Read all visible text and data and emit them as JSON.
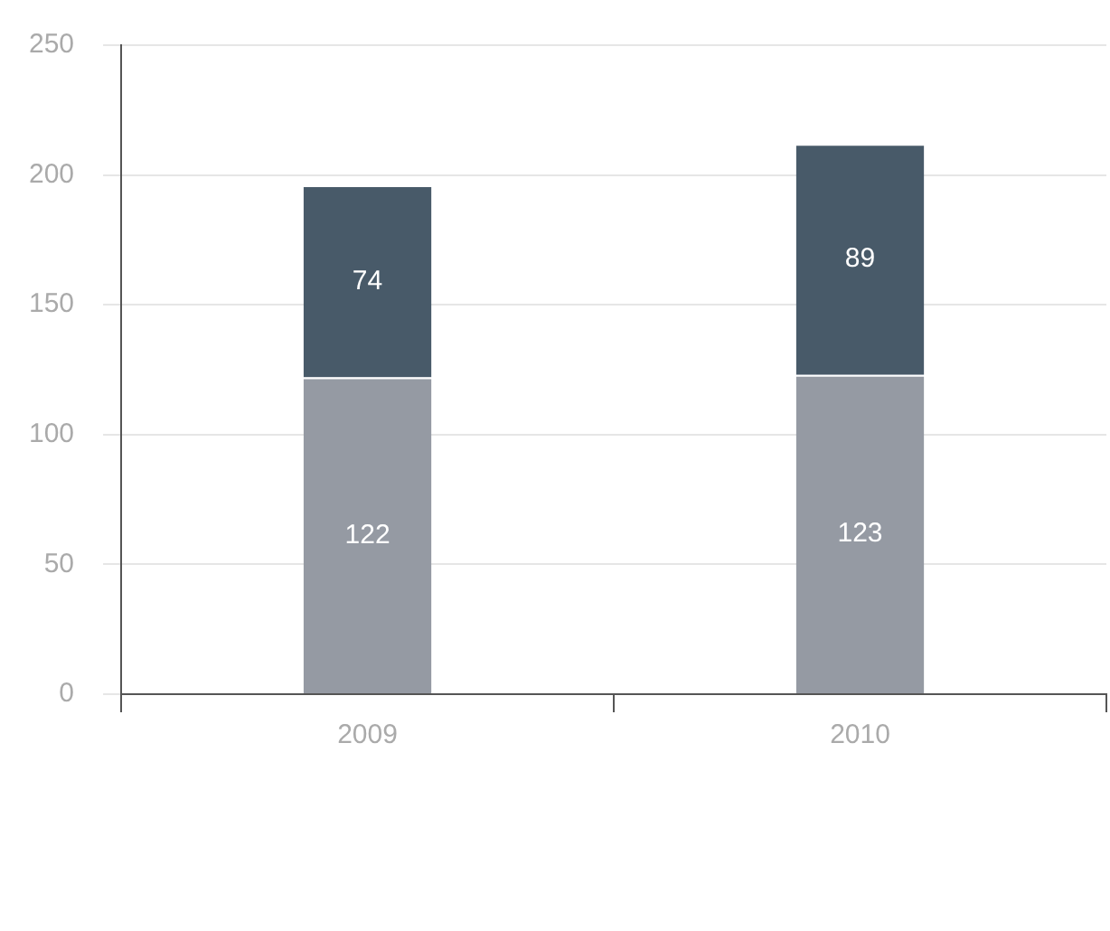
{
  "chart_data": {
    "type": "bar",
    "stacked": true,
    "categories": [
      "2009",
      "2010"
    ],
    "series": [
      {
        "color": "#959aa3",
        "values": [
          122,
          123
        ]
      },
      {
        "color": "#485a69",
        "values": [
          74,
          89
        ]
      }
    ],
    "ylim": [
      0,
      250
    ],
    "yticks": [
      0,
      50,
      100,
      150,
      200,
      250
    ],
    "grid": "y",
    "data_labels": true,
    "legend": false
  }
}
